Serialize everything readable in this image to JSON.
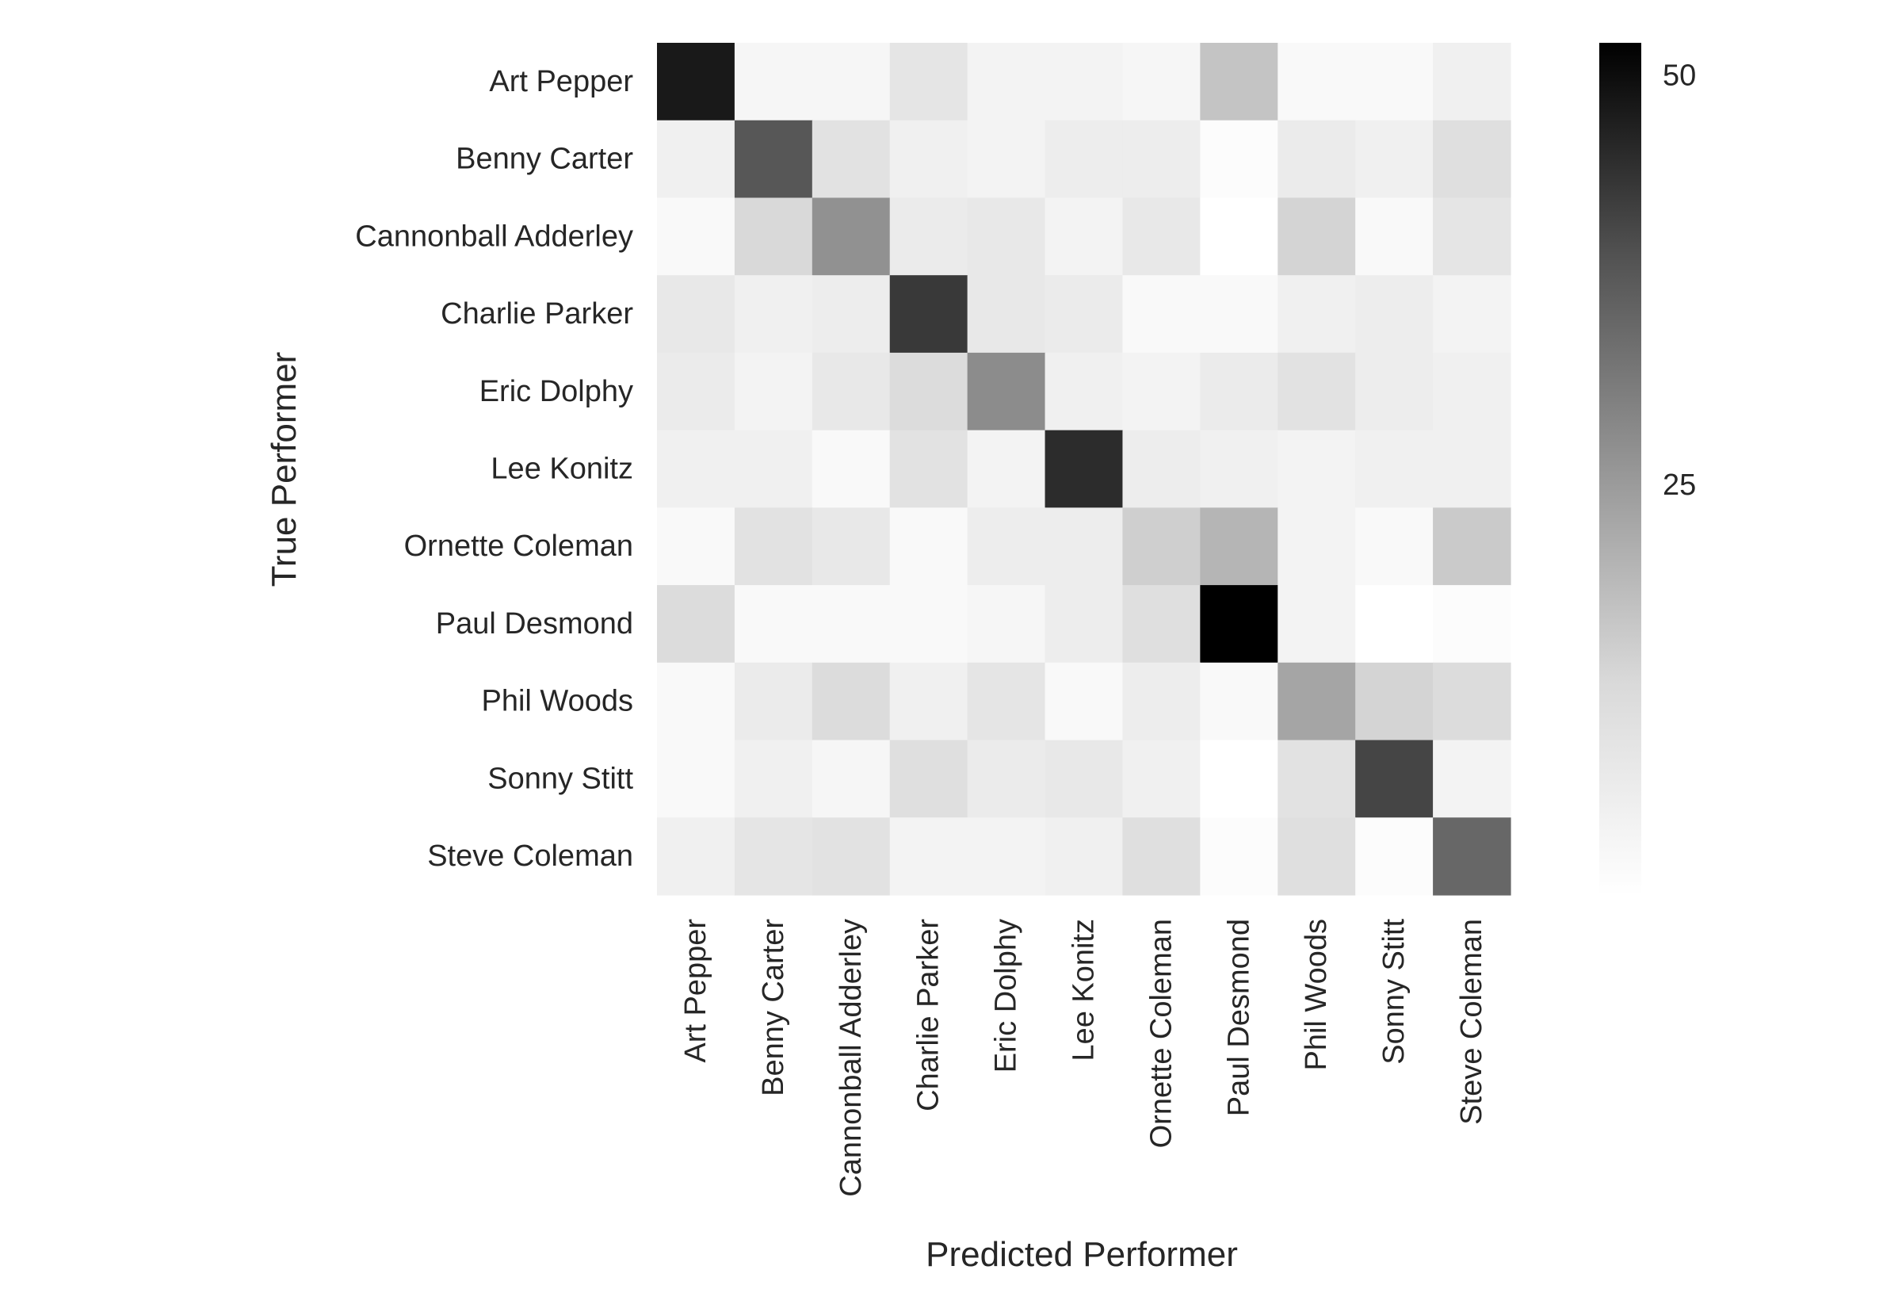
{
  "chart_data": {
    "type": "heatmap",
    "title": "",
    "xlabel": "Predicted Performer",
    "ylabel": "True Performer",
    "x_categories": [
      "Art Pepper",
      "Benny Carter",
      "Cannonball Adderley",
      "Charlie Parker",
      "Eric Dolphy",
      "Lee Konitz",
      "Ornette Coleman",
      "Paul Desmond",
      "Phil Woods",
      "Sonny Stitt",
      "Steve Coleman"
    ],
    "y_categories": [
      "Art Pepper",
      "Benny Carter",
      "Cannonball Adderley",
      "Charlie Parker",
      "Eric Dolphy",
      "Lee Konitz",
      "Ornette Coleman",
      "Paul Desmond",
      "Phil Woods",
      "Sonny Stitt",
      "Steve Coleman"
    ],
    "values": [
      [
        48,
        3,
        3,
        9,
        4,
        4,
        3,
        17,
        2,
        2,
        5
      ],
      [
        5,
        38,
        10,
        5,
        4,
        6,
        6,
        1,
        7,
        5,
        11
      ],
      [
        2,
        13,
        27,
        7,
        8,
        4,
        8,
        0,
        14,
        2,
        9
      ],
      [
        8,
        5,
        6,
        43,
        8,
        7,
        2,
        2,
        5,
        6,
        4
      ],
      [
        7,
        4,
        8,
        12,
        28,
        5,
        4,
        7,
        10,
        6,
        5
      ],
      [
        5,
        5,
        2,
        10,
        4,
        45,
        6,
        5,
        4,
        5,
        5
      ],
      [
        2,
        10,
        8,
        2,
        6,
        6,
        15,
        20,
        4,
        2,
        16
      ],
      [
        12,
        2,
        2,
        2,
        3,
        6,
        11,
        52,
        4,
        0,
        1
      ],
      [
        2,
        7,
        12,
        5,
        9,
        2,
        6,
        2,
        23,
        14,
        12
      ],
      [
        2,
        5,
        3,
        11,
        7,
        8,
        5,
        0,
        10,
        41,
        4
      ],
      [
        5,
        9,
        10,
        4,
        4,
        5,
        11,
        1,
        11,
        1,
        35
      ]
    ],
    "colorbar": {
      "ticks": [
        50,
        25
      ],
      "vmin": 0,
      "vmax": 52,
      "colormap": "Greys"
    },
    "grid": false,
    "legend": "colorbar-right"
  }
}
